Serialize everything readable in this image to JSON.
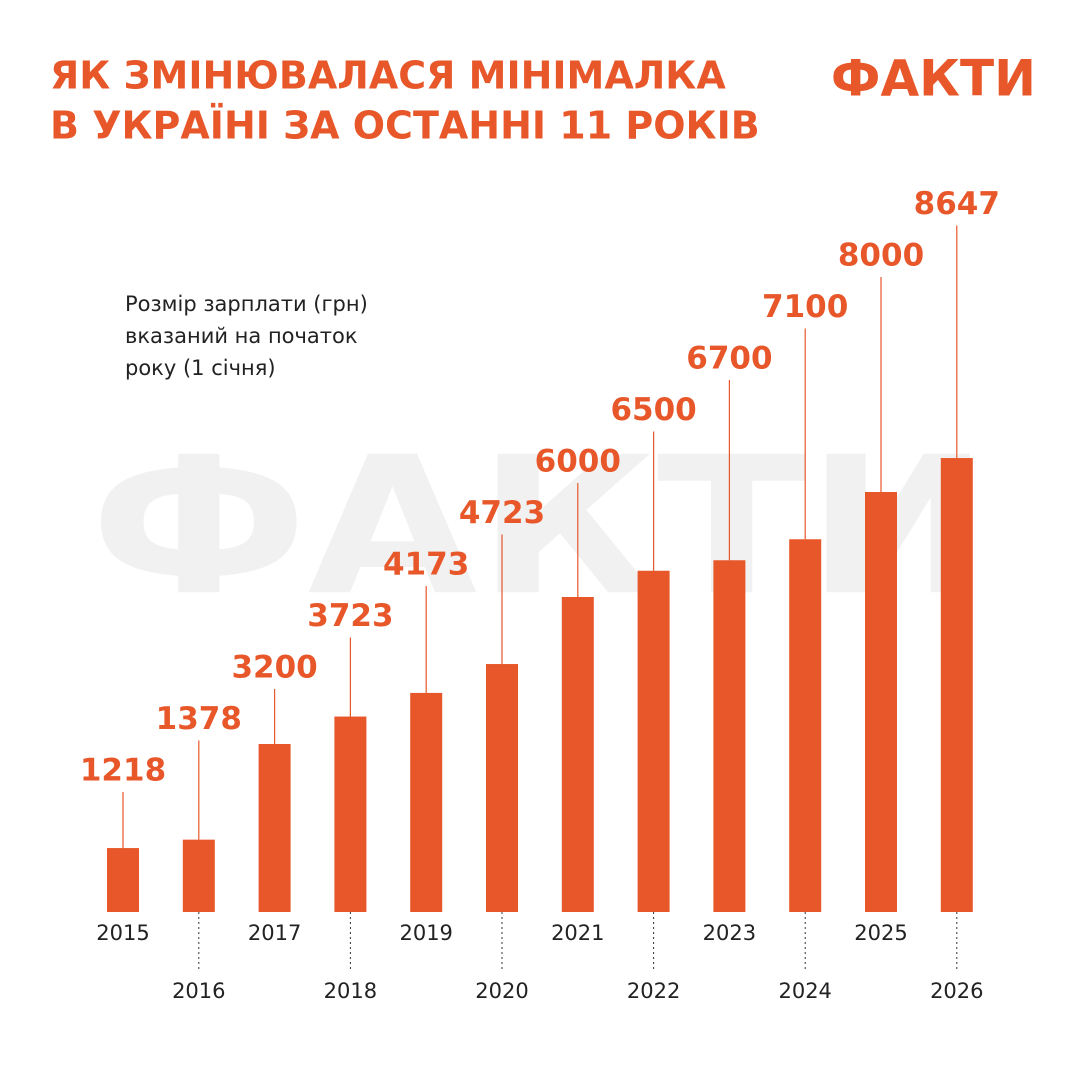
{
  "chart_data": {
    "type": "bar",
    "title": [
      "ЯК ЗМІНЮВАЛАСЯ МІНІМАЛКА",
      "В УКРАЇНІ ЗА ОСТАННІ 11 РОКІВ"
    ],
    "logo": "ФАКТИ",
    "note": [
      "Розмір зарплати (грн)",
      "вказаний на початок",
      "року (1 січня)"
    ],
    "categories": [
      "2015",
      "2016",
      "2017",
      "2018",
      "2019",
      "2020",
      "2021",
      "2022",
      "2023",
      "2024",
      "2025",
      "2026"
    ],
    "values": [
      1218,
      1378,
      3200,
      3723,
      4173,
      4723,
      6000,
      6500,
      6700,
      7100,
      8000,
      8647
    ],
    "color": "#e8572a"
  }
}
